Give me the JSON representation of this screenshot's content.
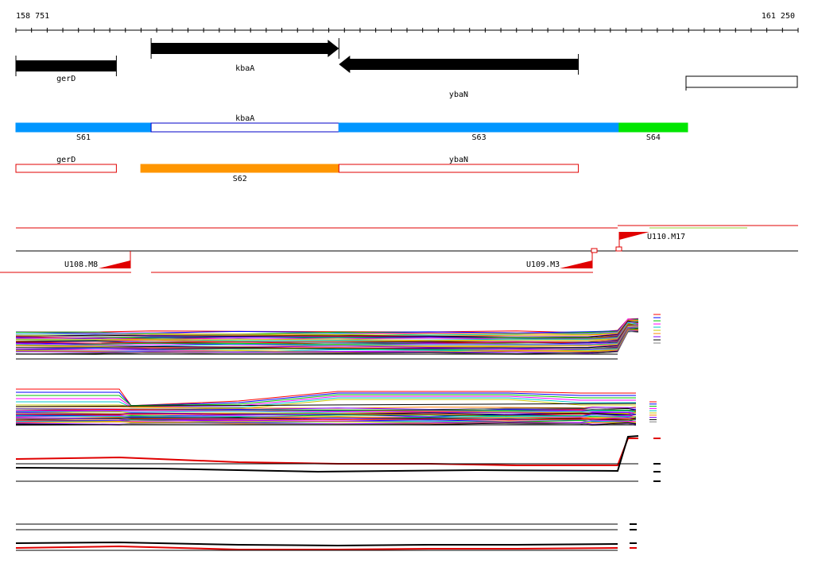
{
  "ruler": {
    "start_label": "158 751",
    "end_label": "161 250",
    "start": 158751,
    "end": 161250
  },
  "genes": [
    {
      "name": "gerD",
      "start": 158751,
      "end": 159072,
      "strand": "+",
      "label": "gerD"
    },
    {
      "name": "kbaA",
      "start": 159183,
      "end": 159783,
      "strand": "+",
      "label": "kbaA"
    },
    {
      "name": "ybaN",
      "start": 159783,
      "end": 160548,
      "strand": "-",
      "label": "ybaN"
    },
    {
      "name": "next-gene",
      "start": 160971,
      "end": 161250,
      "strand": "+",
      "label": ""
    }
  ],
  "segments_track": [
    {
      "label": "S61",
      "start": 158751,
      "end": 159183,
      "color": "#0096ff",
      "filled": true,
      "label_side": "below"
    },
    {
      "label": "kbaA",
      "start": 159183,
      "end": 159783,
      "color": "#0000c8",
      "filled": false,
      "label_side": "above"
    },
    {
      "label": "S63",
      "start": 159783,
      "end": 160678,
      "color": "#0096ff",
      "filled": true,
      "label_side": "below"
    },
    {
      "label": "S64",
      "start": 160678,
      "end": 160897,
      "color": "#00e600",
      "filled": true,
      "label_side": "below"
    }
  ],
  "annotation_track": [
    {
      "label": "gerD",
      "start": 158751,
      "end": 159072,
      "color": "#e00000",
      "filled": false,
      "label_side": "above"
    },
    {
      "label": "S62",
      "start": 159150,
      "end": 159783,
      "color": "#ff9600",
      "filled": true,
      "label_side": "below"
    },
    {
      "label": "ybaN",
      "start": 159783,
      "end": 160548,
      "color": "#e00000",
      "filled": false,
      "label_side": "above"
    }
  ],
  "upstream_markers": [
    {
      "label": "U108.M8",
      "position": 159113
    },
    {
      "label": "U109.M3",
      "position": 160566
    },
    {
      "label": "U110.M17",
      "position": 160659
    }
  ],
  "colors": {
    "ruler": "#000000",
    "gene_fill": "#000000",
    "marker": "#e00000",
    "profile_palette": [
      "#ff0000",
      "#0000ff",
      "#00c000",
      "#ff00ff",
      "#00c8c8",
      "#c8c800",
      "#ff8000",
      "#8000ff",
      "#000000",
      "#808080"
    ]
  }
}
